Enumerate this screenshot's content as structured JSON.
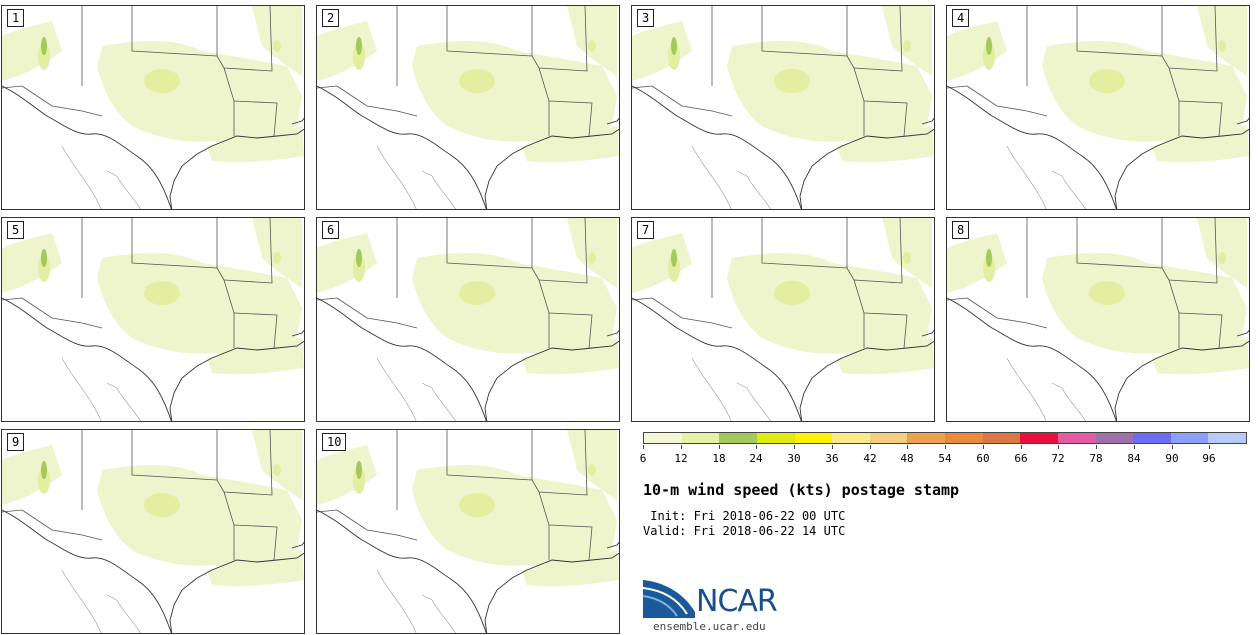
{
  "panels": [
    {
      "label": "1"
    },
    {
      "label": "2"
    },
    {
      "label": "3"
    },
    {
      "label": "4"
    },
    {
      "label": "5"
    },
    {
      "label": "6"
    },
    {
      "label": "7"
    },
    {
      "label": "8"
    },
    {
      "label": "9"
    },
    {
      "label": "10"
    }
  ],
  "legend": {
    "colors": [
      "#f3f7d7",
      "#e4f2a6",
      "#a5c85a",
      "#e0ea10",
      "#fdf200",
      "#fce98a",
      "#f5cd80",
      "#eba24c",
      "#e88c3c",
      "#d97846",
      "#ec0f3e",
      "#e45aa4",
      "#9e71a9",
      "#6c6cf4",
      "#8aa0fc",
      "#b8cafc"
    ],
    "ticks": [
      "6",
      "12",
      "18",
      "24",
      "30",
      "36",
      "42",
      "48",
      "54",
      "60",
      "66",
      "72",
      "78",
      "84",
      "90",
      "96"
    ]
  },
  "title": "10-m wind speed (kts) postage stamp",
  "init": " Init: Fri 2018-06-22 00 UTC",
  "valid": "Valid: Fri 2018-06-22 14 UTC",
  "logo": {
    "text": "NCAR",
    "url": "ensemble.ucar.edu"
  }
}
